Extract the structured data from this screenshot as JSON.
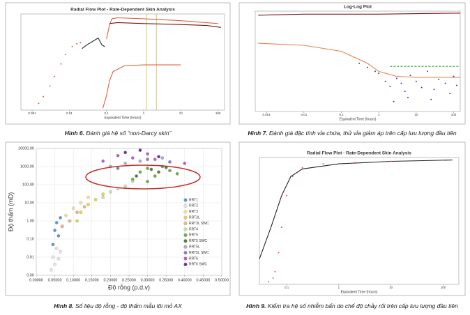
{
  "chart_data": [
    {
      "type": "line",
      "title": "Radial Flow Plot - Rate-Dependent Skin Analysis",
      "x_label": "Equivalent Time (hours)",
      "xlog": true,
      "xlim": [
        0.0005,
        150
      ],
      "xticks": [
        0.001,
        0.01,
        0.1,
        1,
        10,
        100
      ],
      "ylim": [
        0,
        100
      ],
      "reference_lines": [
        {
          "x": 1.2,
          "color": "#c9c94a"
        },
        {
          "x": 2.2,
          "color": "#e0b060"
        }
      ],
      "series": [
        {
          "style": "dots",
          "color": "#e0603a",
          "x": [
            0.0015,
            0.002,
            0.003,
            0.004,
            0.006,
            0.008,
            0.012,
            0.016,
            0.02
          ],
          "values": [
            7,
            14,
            25,
            35,
            48,
            58,
            66,
            69,
            70
          ]
        },
        {
          "style": "line",
          "color": "#222222",
          "x": [
            0.022,
            0.03,
            0.045,
            0.06,
            0.075,
            0.09
          ],
          "values": [
            64,
            68,
            72,
            75,
            68,
            66
          ]
        },
        {
          "style": "line",
          "color": "#e0603a",
          "x": [
            0.1,
            0.12,
            0.14,
            0.2,
            1,
            10,
            100
          ],
          "values": [
            74,
            88,
            95,
            96,
            95,
            93,
            90
          ]
        },
        {
          "style": "line",
          "color": "#7a1010",
          "x": [
            0.12,
            0.2,
            1,
            10,
            50,
            120
          ],
          "values": [
            90,
            91,
            90,
            89,
            88,
            86
          ]
        },
        {
          "style": "line",
          "color": "#e0603a",
          "x": [
            0.08,
            0.1,
            0.12,
            0.15,
            0.3,
            1,
            10
          ],
          "values": [
            2,
            15,
            30,
            40,
            46,
            47,
            47
          ]
        }
      ],
      "figure_label": "Hình 6.",
      "caption": "Đánh giá hệ số “non-Darcy skin”"
    },
    {
      "type": "line",
      "title": "Log-Log Plot",
      "x_label": "Equivalent Time (hours)",
      "xlog": true,
      "xlim": [
        0.0005,
        150
      ],
      "xticks": [
        0.001,
        0.01,
        0.1,
        1,
        10,
        100
      ],
      "ylim": [
        0,
        100
      ],
      "series": [
        {
          "style": "line",
          "color": "#7a1010",
          "x": [
            0.0006,
            0.01,
            1,
            100,
            150
          ],
          "values": [
            96,
            97,
            97,
            98,
            98
          ]
        },
        {
          "style": "line",
          "color": "#e8804a",
          "x": [
            0.0006,
            0.01,
            0.1,
            0.5,
            1,
            3,
            10,
            100,
            150
          ],
          "values": [
            68,
            66,
            60,
            48,
            40,
            35,
            34,
            34,
            34
          ]
        },
        {
          "style": "dashed",
          "color": "#3aa040",
          "x": [
            2,
            150
          ],
          "values": [
            45,
            45
          ]
        },
        {
          "style": "dots",
          "color": "#3040a0",
          "x": [
            0.3,
            0.5,
            0.8,
            1,
            1.5,
            2,
            3,
            4,
            5,
            7,
            10,
            14,
            20,
            30,
            40,
            60,
            80,
            100,
            120,
            2.5,
            6,
            25
          ],
          "values": [
            48,
            44,
            40,
            38,
            30,
            25,
            33,
            28,
            20,
            36,
            30,
            24,
            40,
            22,
            32,
            28,
            18,
            35,
            26,
            10,
            14,
            12
          ]
        }
      ],
      "figure_label": "Hình 7.",
      "caption": "Đánh giá đặc tính vỉa chứa, thử vỉa giảm áp trên cấp lưu lượng đầu tiên"
    },
    {
      "type": "scatter",
      "x_label": "Độ rỗng (p.d.v)",
      "y_label": "Độ thấm (mD)",
      "ylog": true,
      "legend": true,
      "xlim": [
        0,
        0.5
      ],
      "ylim": [
        0.001,
        10000
      ],
      "xticks": [
        {
          "value": 0,
          "label": "0.00000"
        },
        {
          "value": 0.05,
          "label": "0.05000"
        },
        {
          "value": 0.1,
          "label": "0.10000"
        },
        {
          "value": 0.15,
          "label": "0.15000"
        },
        {
          "value": 0.2,
          "label": "0.20000"
        },
        {
          "value": 0.25,
          "label": "0.25000"
        },
        {
          "value": 0.3,
          "label": "0.30000"
        },
        {
          "value": 0.35,
          "label": "0.35000"
        },
        {
          "value": 0.4,
          "label": "0.40000"
        },
        {
          "value": 0.45,
          "label": "0.45000"
        },
        {
          "value": 0.5,
          "label": "0.50000"
        }
      ],
      "yticks": [
        {
          "value": 10000,
          "label": "10000.00"
        },
        {
          "value": 1000,
          "label": "1000.00"
        },
        {
          "value": 100,
          "label": "100.00"
        },
        {
          "value": 10,
          "label": "10.00"
        },
        {
          "value": 1,
          "label": "1.00"
        },
        {
          "value": 0.1,
          "label": "0.10"
        },
        {
          "value": 0.01,
          "label": "0.01"
        },
        {
          "value": 0.001,
          "label": "0.00"
        }
      ],
      "series": [
        {
          "name": "RRT1",
          "color": "#5b9bd5",
          "x": [
            0.05,
            0.055,
            0.06,
            0.065,
            0.07,
            0.045
          ],
          "values": [
            0.3,
            0.8,
            0.15,
            1.5,
            0.5,
            0.05
          ]
        },
        {
          "name": "RRT2",
          "color": "#e6e6e6",
          "x": [
            0.04,
            0.045,
            0.05,
            0.055,
            0.06,
            0.065
          ],
          "values": [
            0.002,
            0.01,
            0.004,
            0.03,
            0.008,
            0.02
          ]
        },
        {
          "name": "RRT3",
          "color": "#f2e394",
          "x": [
            0.08,
            0.1,
            0.12,
            0.09,
            0.14
          ],
          "values": [
            2,
            5,
            10,
            1,
            20
          ]
        },
        {
          "name": "RRT3L",
          "color": "#e8d44d",
          "x": [
            0.12,
            0.14,
            0.16,
            0.18,
            0.11
          ],
          "values": [
            3,
            8,
            15,
            30,
            1
          ]
        },
        {
          "name": "RRT3L SWC",
          "color": "#f4b183",
          "x": [
            0.07,
            0.09,
            0.11,
            0.13
          ],
          "values": [
            0.5,
            1,
            3,
            6
          ]
        },
        {
          "name": "RRT4",
          "color": "#c5e0b4",
          "x": [
            0.18,
            0.2,
            0.22,
            0.24,
            0.26
          ],
          "values": [
            20,
            40,
            60,
            80,
            150
          ]
        },
        {
          "name": "RRT5",
          "color": "#70ad47",
          "x": [
            0.26,
            0.28,
            0.3,
            0.32,
            0.34,
            0.36,
            0.3,
            0.38
          ],
          "values": [
            200,
            500,
            800,
            300,
            1000,
            600,
            150,
            400
          ]
        },
        {
          "name": "RRT5 SWC",
          "color": "#548235",
          "x": [
            0.27,
            0.31,
            0.33,
            0.35
          ],
          "values": [
            300,
            700,
            500,
            900
          ]
        },
        {
          "name": "RRT5L",
          "color": "#b4a7d6",
          "x": [
            0.2,
            0.24,
            0.28,
            0.34
          ],
          "values": [
            1000,
            1500,
            2000,
            3000
          ]
        },
        {
          "name": "RRT5L SWC",
          "color": "#8e7cc3",
          "x": [
            0.22,
            0.3,
            0.36
          ],
          "values": [
            800,
            2500,
            1800
          ]
        },
        {
          "name": "RRT6",
          "color": "#c060c0",
          "x": [
            0.18,
            0.22,
            0.26,
            0.3,
            0.32,
            0.4
          ],
          "values": [
            2000,
            4000,
            3000,
            5000,
            2500,
            1500
          ]
        },
        {
          "name": "RRT6 SWC",
          "color": "#7030a0",
          "x": [
            0.24,
            0.28,
            0.33
          ],
          "values": [
            6000,
            8000,
            3500
          ]
        }
      ],
      "figure_label": "Hình 8.",
      "caption": "Số liệu độ rỗng - độ thấm mẫu lõi mỏ AX"
    },
    {
      "type": "line",
      "title": "Radial Flow Plot - Rate-Dependent Skin Analysis",
      "x_label": "Equivalent Time (hours)",
      "xlog": true,
      "xlim": [
        0.03,
        200
      ],
      "xticks": [
        0.1,
        1,
        10,
        100
      ],
      "ylim": [
        0,
        100
      ],
      "series": [
        {
          "style": "line",
          "color": "#222222",
          "x": [
            0.03,
            0.05,
            0.08,
            0.12,
            0.2,
            1,
            10,
            150
          ],
          "values": [
            20,
            45,
            70,
            85,
            91,
            95,
            97,
            98
          ]
        },
        {
          "style": "dots",
          "color": "#e0603a",
          "x": [
            0.045,
            0.055,
            0.06,
            0.07,
            0.08,
            0.1,
            0.13,
            0.2,
            0.5,
            2,
            10,
            100
          ],
          "values": [
            2,
            5,
            10,
            25,
            45,
            70,
            85,
            92,
            95,
            96,
            97,
            98
          ]
        }
      ],
      "figure_label": "Hình 9.",
      "caption": "Kiểm tra hệ số nhiễm bẩn do chế độ chảy rối trên cấp lưu lượng đầu tiên"
    }
  ]
}
